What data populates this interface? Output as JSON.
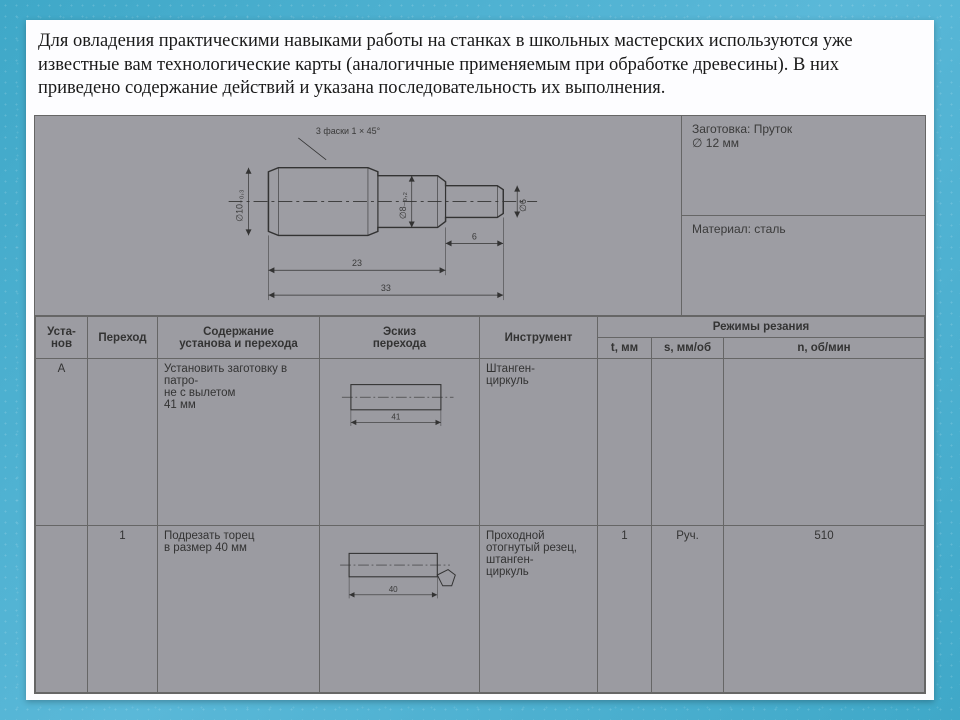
{
  "intro_text": "Для овладения практическими навыками работы на станках в школьных мастерских используются уже известные вам технологические карты (аналогичные применяемым при обработке древесины). В них приведено содержание действий и указана последовательность их выполнения.",
  "info": {
    "zagotovka_line1": "Заготовка: Пруток",
    "zagotovka_line2": "∅ 12 мм",
    "material": "Материал: сталь"
  },
  "drawing": {
    "chamfer_note": "3 фаски 1 × 45°",
    "d_left": "∅10₋₀,₃",
    "d_mid": "∅8₋₀,₂",
    "d_right": "∅6",
    "len_small": "6",
    "len_23": "23",
    "len_33": "33"
  },
  "headers": {
    "ustanov": "Уста-\nнов",
    "perehod": "Переход",
    "soderzh": "Содержание\nустанова и перехода",
    "eskiz": "Эскиз\nперехода",
    "instr": "Инструмент",
    "rezhimy": "Режимы резания",
    "t": "t, мм",
    "s": "s, мм/об",
    "n": "n, об/мин"
  },
  "rows": [
    {
      "ustanov": "А",
      "perehod": "",
      "soderzh": "Установить заготовку в патро-\nне с вылетом\n41 мм",
      "sketch_dim": "41",
      "instr": "Штанген-\nциркуль",
      "t": "",
      "s": "",
      "n": ""
    },
    {
      "ustanov": "",
      "perehod": "1",
      "soderzh": "Подрезать торец\nв размер 40 мм",
      "sketch_dim": "40",
      "instr": "Проходной отогнутый резец,\nштанген-\nциркуль",
      "t": "1",
      "s": "Руч.",
      "n": "510"
    }
  ],
  "colors": {
    "border": "#666666",
    "cell_bg": "#9b9ba1",
    "page_bg": "#fdfdff",
    "outer_bg": "#4bb0d0",
    "text": "#333333"
  },
  "fontsizes": {
    "intro": 18.5,
    "cell": 11.5,
    "header": 11.5,
    "tiny": 9
  }
}
